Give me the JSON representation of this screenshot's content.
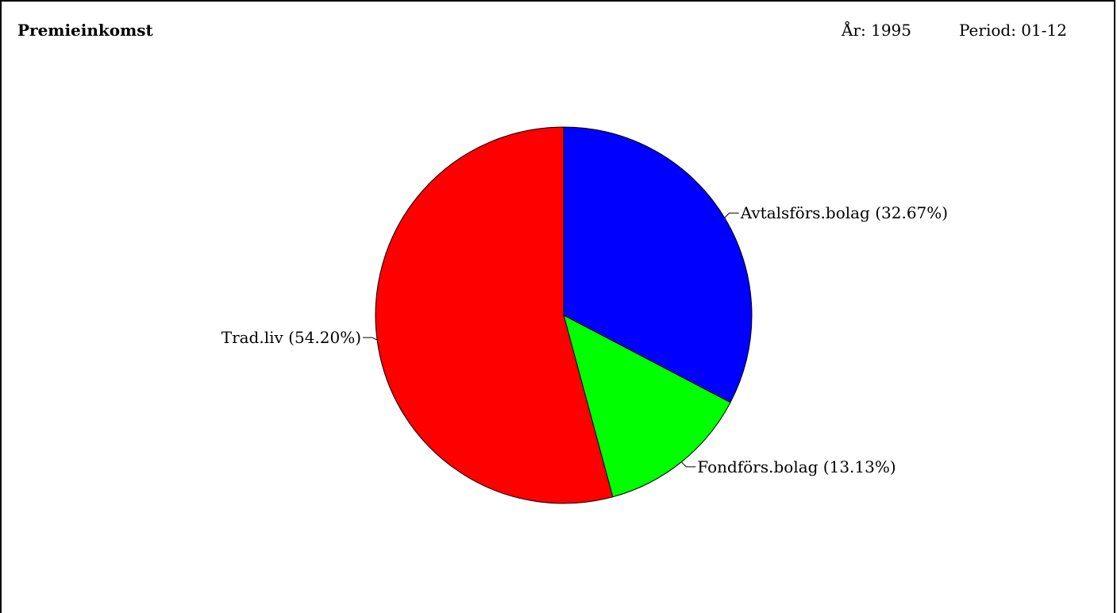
{
  "header": {
    "title": "Premieinkomst",
    "year_label": "År: 1995",
    "period_label": "Period: 01-12"
  },
  "chart_data": {
    "type": "pie",
    "title": "Premieinkomst",
    "start_angle_deg": 0,
    "direction": "clockwise",
    "slices": [
      {
        "label": "Avtalsförs.bolag (32.67%)",
        "name": "Avtalsförs.bolag",
        "value": 32.67,
        "color": "#0000ff"
      },
      {
        "label": "Fondförs.bolag (13.13%)",
        "name": "Fondförs.bolag",
        "value": 13.13,
        "color": "#00ff00"
      },
      {
        "label": "Trad.liv (54.20%)",
        "name": "Trad.liv",
        "value": 54.2,
        "color": "#ff0000"
      }
    ]
  }
}
